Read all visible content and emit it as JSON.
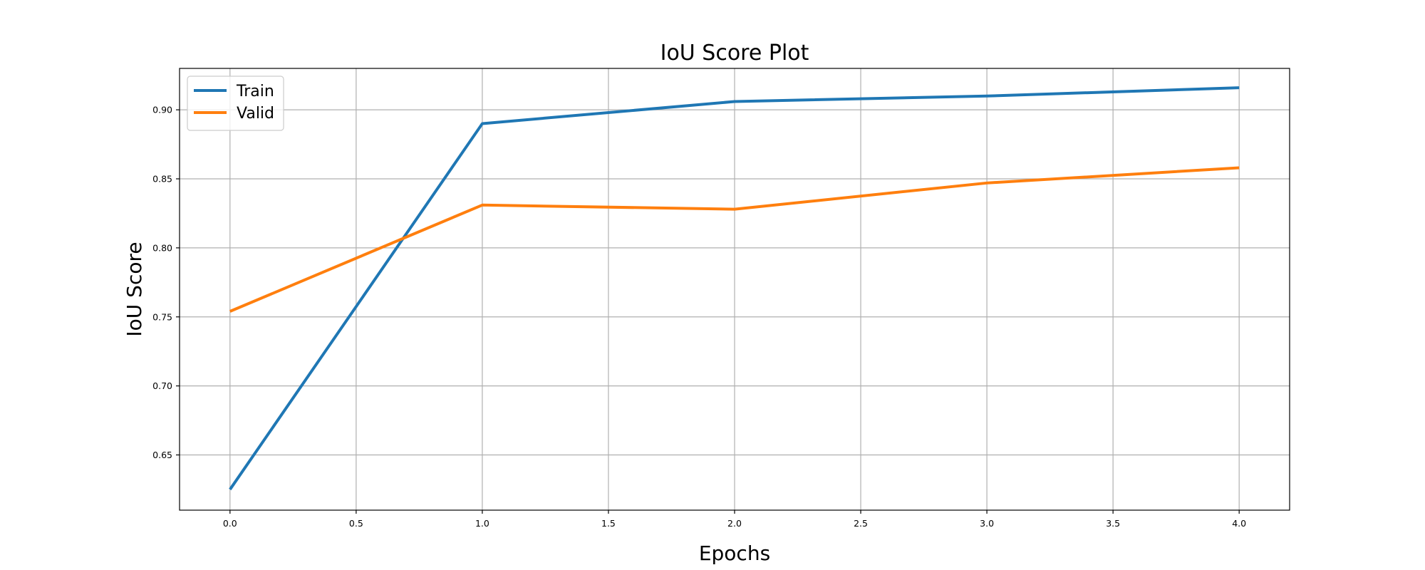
{
  "chart_data": {
    "type": "line",
    "title": "IoU Score Plot",
    "xlabel": "Epochs",
    "ylabel": "IoU Score",
    "x": [
      0,
      1,
      2,
      3,
      4
    ],
    "series": [
      {
        "name": "Train",
        "values": [
          0.625,
          0.89,
          0.906,
          0.91,
          0.916
        ],
        "color": "#1f77b4"
      },
      {
        "name": "Valid",
        "values": [
          0.754,
          0.831,
          0.828,
          0.847,
          0.858
        ],
        "color": "#ff7f0e"
      }
    ],
    "xlim": [
      -0.2,
      4.2
    ],
    "ylim": [
      0.61,
      0.93
    ],
    "xticks": [
      0.0,
      0.5,
      1.0,
      1.5,
      2.0,
      2.5,
      3.0,
      3.5,
      4.0
    ],
    "xtick_labels": [
      "0.0",
      "0.5",
      "1.0",
      "1.5",
      "2.0",
      "2.5",
      "3.0",
      "3.5",
      "4.0"
    ],
    "yticks": [
      0.65,
      0.7,
      0.75,
      0.8,
      0.85,
      0.9
    ],
    "ytick_labels": [
      "0.65",
      "0.70",
      "0.75",
      "0.80",
      "0.85",
      "0.90"
    ],
    "grid": true,
    "legend_position": "top-left"
  }
}
